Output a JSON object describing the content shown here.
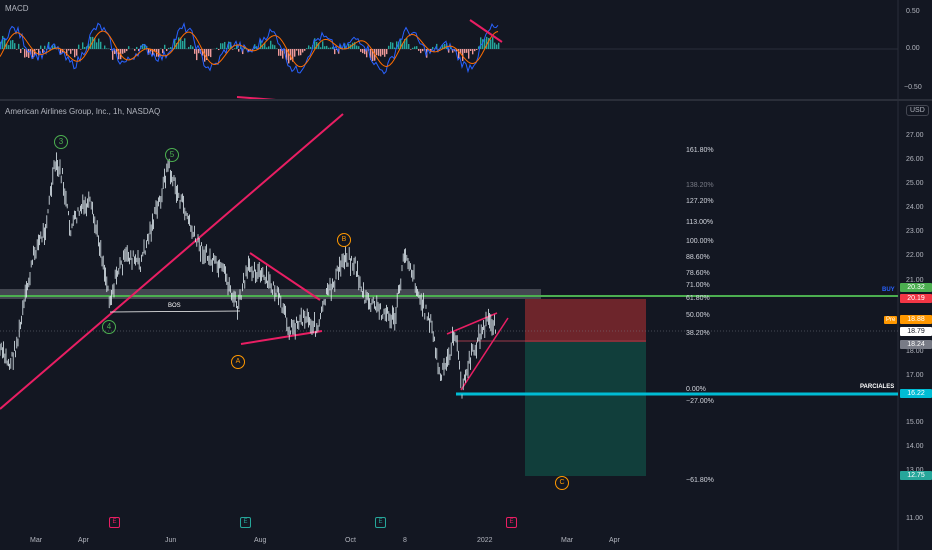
{
  "macd": {
    "title": "MACD",
    "axis_labels": [
      "0.50",
      "0.00",
      "−0.50"
    ]
  },
  "main": {
    "title": "American Airlines Group, Inc., 1h, NASDAQ",
    "currency": "USD",
    "price_axis": [
      "27.00",
      "26.00",
      "25.00",
      "24.00",
      "23.00",
      "22.00",
      "21.00",
      "18.00",
      "17.00",
      "15.00",
      "14.00",
      "13.00",
      "11.00"
    ],
    "time_axis": [
      "Mar",
      "Apr",
      "Jun",
      "Aug",
      "Oct",
      "8",
      "2022",
      "Mar",
      "Apr"
    ]
  },
  "fib_levels": [
    "161.80%",
    "138.20%",
    "127.20%",
    "113.00%",
    "100.00%",
    "88.60%",
    "78.60%",
    "71.00%",
    "61.80%",
    "50.00%",
    "38.20%",
    "0.00%",
    "−27.00%",
    "−61.80%"
  ],
  "price_tags": {
    "buy_label": "BUY",
    "buy": "20.32",
    "stop": "20.19",
    "pre_label": "Pre",
    "pre": "18.88",
    "last": "18.79",
    "entry": "18.24",
    "parciales_label": "PARCIALES",
    "parciales": "16.22",
    "target": "12.75"
  },
  "annotations": {
    "bos": "BOS"
  },
  "waves": {
    "w3": "3",
    "w5": "5",
    "w4": "4",
    "wA": "A",
    "wB": "B",
    "wC": "C"
  },
  "events": [
    "E",
    "E",
    "E",
    "E"
  ],
  "colors": {
    "background": "#131722",
    "macd_line": "#2962ff",
    "signal_line": "#ff6d00",
    "trendline": "#e91e63",
    "buy_green": "#4caf50",
    "stop_red": "#f23645",
    "parciales_cyan": "#00bcd4",
    "candle": "#e1ecf2"
  }
}
